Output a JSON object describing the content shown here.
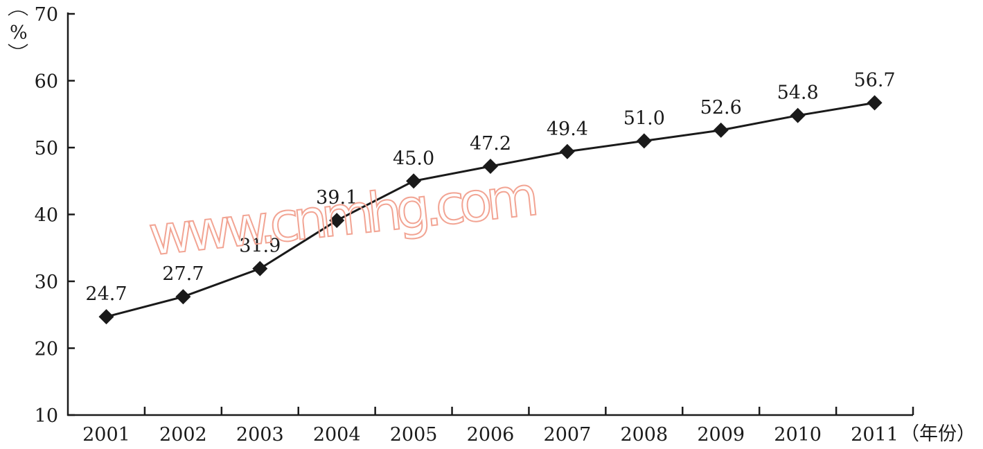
{
  "chart_data": {
    "type": "line",
    "title": "",
    "xlabel": "（年份）",
    "ylabel": "（%）",
    "categories": [
      "2001",
      "2002",
      "2003",
      "2004",
      "2005",
      "2006",
      "2007",
      "2008",
      "2009",
      "2010",
      "2011"
    ],
    "series": [
      {
        "values": [
          24.7,
          27.7,
          31.9,
          39.1,
          45.0,
          47.2,
          49.4,
          51.0,
          52.6,
          54.8,
          56.7
        ],
        "labels": [
          "24.7",
          "27.7",
          "31.9",
          "39.1",
          "45.0",
          "47.2",
          "49.4",
          "51.0",
          "52.6",
          "54.8",
          "56.7"
        ],
        "marker": "diamond",
        "color": "#1a1a1a"
      }
    ],
    "ylim": [
      10,
      70
    ],
    "yticks": [
      "10",
      "20",
      "30",
      "40",
      "50",
      "60",
      "70"
    ],
    "grid": false,
    "legend": "none"
  },
  "watermark": "www.cnmhg.com",
  "colors": {
    "line": "#1a1a1a",
    "watermark": "#f2a493"
  }
}
